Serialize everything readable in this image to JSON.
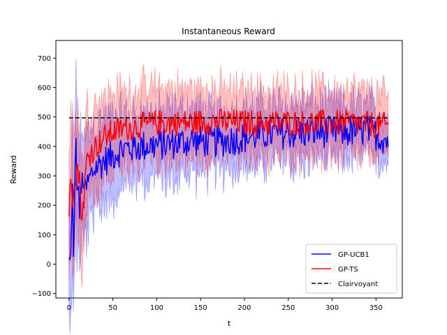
{
  "chart_data": {
    "type": "line",
    "title": "Instantaneous Reward",
    "xlabel": "t",
    "ylabel": "Reward",
    "xlim": [
      -15,
      380
    ],
    "ylim": [
      -115,
      760
    ],
    "xticks": [
      0,
      50,
      100,
      150,
      200,
      250,
      300,
      350
    ],
    "yticks": [
      -100,
      0,
      100,
      200,
      300,
      400,
      500,
      600,
      700
    ],
    "grid": false,
    "legend_position": "lower-right",
    "n_points": 365,
    "series": [
      {
        "name": "GP-UCB1",
        "color": "#0000ff",
        "style": "solid",
        "band_alpha": 0.25,
        "anchors_t": [
          0,
          1,
          2,
          3,
          4,
          5,
          6,
          7,
          8,
          9,
          10,
          12,
          14,
          16,
          18,
          20,
          25,
          30,
          40,
          50,
          60,
          80,
          100,
          120,
          140,
          160,
          180,
          200,
          220,
          240,
          260,
          280,
          300,
          320,
          340,
          364
        ],
        "anchors_mean": [
          5,
          0,
          20,
          180,
          250,
          0,
          100,
          330,
          460,
          210,
          300,
          180,
          250,
          300,
          240,
          260,
          300,
          330,
          350,
          370,
          390,
          400,
          405,
          410,
          420,
          415,
          420,
          430,
          440,
          445,
          445,
          450,
          450,
          450,
          455,
          420
        ],
        "anchors_band": [
          180,
          180,
          180,
          220,
          220,
          220,
          220,
          220,
          220,
          220,
          200,
          200,
          200,
          180,
          180,
          180,
          160,
          150,
          140,
          130,
          120,
          110,
          110,
          110,
          110,
          100,
          100,
          100,
          100,
          100,
          100,
          90,
          90,
          90,
          90,
          80
        ],
        "noise": 55
      },
      {
        "name": "GP-TS",
        "color": "#ff0000",
        "style": "solid",
        "band_alpha": 0.25,
        "anchors_t": [
          0,
          2,
          4,
          6,
          8,
          10,
          12,
          15,
          20,
          25,
          30,
          40,
          50,
          60,
          80,
          100,
          120,
          140,
          160,
          180,
          200,
          240,
          280,
          320,
          364
        ],
        "anchors_mean": [
          180,
          280,
          230,
          300,
          310,
          330,
          280,
          150,
          350,
          380,
          400,
          430,
          450,
          460,
          470,
          480,
          480,
          480,
          485,
          485,
          480,
          480,
          480,
          480,
          470
        ],
        "anchors_band": [
          200,
          200,
          200,
          200,
          200,
          190,
          190,
          180,
          170,
          160,
          150,
          140,
          130,
          125,
          120,
          120,
          115,
          115,
          110,
          110,
          110,
          110,
          110,
          110,
          100
        ],
        "noise": 45
      },
      {
        "name": "Clairvoyant",
        "color": "#000000",
        "style": "dashed",
        "x": [
          0,
          364
        ],
        "values": [
          497,
          497
        ]
      }
    ]
  }
}
